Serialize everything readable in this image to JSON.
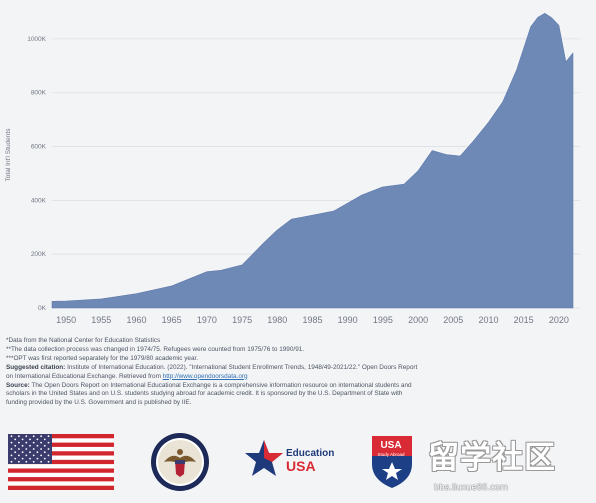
{
  "chart_data": {
    "type": "area",
    "title": "",
    "xlabel": "",
    "ylabel": "Total Int'l Students",
    "x_ticks": [
      "1950",
      "1955",
      "1960",
      "1965",
      "1970",
      "1975",
      "1980",
      "1985",
      "1990",
      "1995",
      "2000",
      "2005",
      "2010",
      "2015",
      "2020"
    ],
    "y_ticks": [
      {
        "value": 0,
        "label": "0K"
      },
      {
        "value": 200000,
        "label": "200K"
      },
      {
        "value": 400000,
        "label": "400K"
      },
      {
        "value": 600000,
        "label": "600K"
      },
      {
        "value": 800000,
        "label": "800K"
      },
      {
        "value": 1000000,
        "label": "1000K"
      }
    ],
    "xlim": [
      1948,
      2023
    ],
    "ylim": [
      0,
      1100000
    ],
    "grid": true,
    "fill_color": "#6f89b7",
    "series": [
      {
        "x": [
          1948,
          1950,
          1955,
          1960,
          1965,
          1970,
          1972,
          1975,
          1978,
          1980,
          1982,
          1985,
          1988,
          1990,
          1992,
          1995,
          1998,
          2000,
          2002,
          2004,
          2006,
          2008,
          2010,
          2012,
          2014,
          2016,
          2017,
          2018,
          2019,
          2020,
          2021,
          2022
        ],
        "y": [
          25000,
          26000,
          34000,
          53000,
          82000,
          135000,
          140000,
          160000,
          240000,
          290000,
          330000,
          345000,
          360000,
          390000,
          420000,
          450000,
          460000,
          510000,
          585000,
          570000,
          565000,
          625000,
          690000,
          765000,
          885000,
          1045000,
          1080000,
          1095000,
          1078000,
          1050000,
          915000,
          948000
        ]
      }
    ]
  },
  "notes": {
    "line1": "*Data from the National Center for Education Statistics",
    "line2": "**The data collection process was changed in 1974/75. Refugees were counted from 1975/76 to 1990/91.",
    "line3": "***OPT was first reported separately for the 1979/80 academic year.",
    "citation_label": "Suggested citation:",
    "citation_text": " Institute of International Education. (2022). \"International Student Enrollment Trends, 1948/49-2021/22.\" Open Doors Report",
    "citation_text2": "on International Educational Exchange. Retrieved from ",
    "citation_link": "http://www.opendoorsdata.org",
    "source_label": "Source:",
    "source_text": " The Open Doors Report on International Educational Exchange is a comprehensive information resource on international students and",
    "source_text2": "scholars in the United States and on U.S. students studying abroad for academic credit. It is sponsored by the U.S. Department of State with",
    "source_text3": "funding provided by the U.S. Government and is published by IIE."
  },
  "logos": {
    "education_usa_line1": "Education",
    "education_usa_line2": "USA",
    "study_abroad_top": "USA",
    "study_abroad_sub": "Study Abroad",
    "flag_icon": "us-flag",
    "seal_icon": "department-of-state-seal"
  },
  "watermark": {
    "text": "留学社区",
    "url": "bbs.liuxue86.com"
  },
  "colors": {
    "grid": "#dcdfe5",
    "axis_text": "#707784"
  }
}
